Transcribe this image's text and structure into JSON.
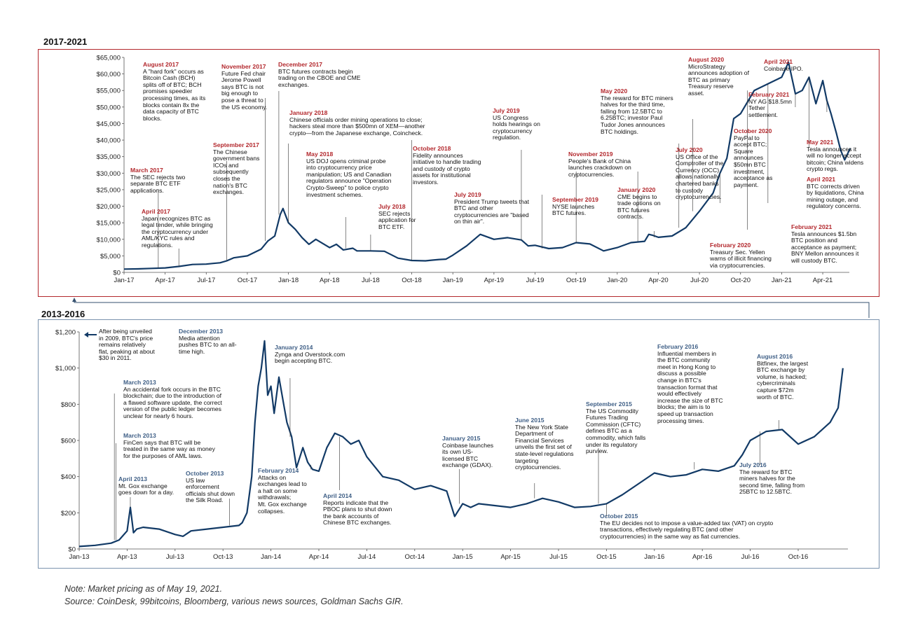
{
  "colors": {
    "line": "#123a66",
    "top_border": "#b3282d",
    "bottom_border": "#7b93ae",
    "red_heading": "#b3282d",
    "blue_heading": "#3f5f86"
  },
  "top_panel": {
    "period": "2017-2021",
    "annotations": [
      {
        "heading": "August 2017",
        "text": "A \"hard fork\" occurs as\nBitcoin Cash (BCH)\nsplits off of BTC; BCH\npromises speedier\nprocessing times, as its\nblocks contain 8x the\ndata capacity of BTC\nblocks."
      },
      {
        "heading": "November 2017",
        "text": "Future Fed chair\nJerome Powell\nsays BTC is not\nbig enough to\npose a threat to\nthe US economy."
      },
      {
        "heading": "December 2017",
        "text": "BTC futures contracts begin\ntrading on the CBOE and CME\nexchanges."
      },
      {
        "heading": "March 2017",
        "text": "The SEC rejects two\nseparate BTC ETF\napplications."
      },
      {
        "heading": "April 2017",
        "text": "Japan recognizes BTC as\nlegal tender, while bringing\nthe cryptocurrency under\nAML/KYC rules and\nregulations."
      },
      {
        "heading": "September 2017",
        "text": "The Chinese\ngovernment bans\nICOs and\nsubsequently\ncloses the\nnation's BTC\nexchanges."
      },
      {
        "heading": "January 2018",
        "text": "Chinese officials order mining operations to close;\nhackers steal more than $500mn of XEM—another\ncrypto—from the Japanese exchange, Coincheck."
      },
      {
        "heading": "May 2018",
        "text": "US DOJ opens criminal probe\ninto cryptocurrency price\nmanipulation; US and Canadian\nregulators announce \"Operation\nCrypto-Sweep\" to police crypto\ninvestment schemes."
      },
      {
        "heading": "October 2018",
        "text": "Fidelity announces\ninitiative to handle trading\nand custody of crypto\nassets for institutional\ninvestors."
      },
      {
        "heading": "July 2018",
        "text": "SEC rejects\napplication for\nBTC ETF."
      },
      {
        "heading": "July 2019",
        "text": "US Congress\nholds hearings on\ncryptocurrency\nregulation."
      },
      {
        "heading": "July 2019",
        "text": "President Trump tweets that\nBTC and other\ncryptocurrencies are \"based\non thin air\"."
      },
      {
        "heading": "May 2020",
        "text": "The reward for BTC miners\nhalves for the third time,\nfalling from 12.5BTC to\n6.25BTC; investor Paul\nTudor Jones announces\nBTC holdings."
      },
      {
        "heading": "November 2019",
        "text": "People's Bank of China\nlaunches crackdown on\ncryptocurrencies."
      },
      {
        "heading": "September 2019",
        "text": "NYSE launches\nBTC futures."
      },
      {
        "heading": "January 2020",
        "text": "CME begins to\ntrade options on\nBTC futures\ncontracts."
      },
      {
        "heading": "August 2020",
        "text": "MicroStrategy\nannounces adoption of\nBTC as primary\nTreasury reserve\nasset."
      },
      {
        "heading": "July 2020",
        "text": "US Office of the\nComptroller of the\nCurrency (OCC)\nallows nationally\nchartered banks\nto custody\ncryptocurrencies."
      },
      {
        "heading": "February 2020",
        "text": "Treasury Sec. Yellen\nwarns of illicit financing\nvia cryptocurrencies."
      },
      {
        "heading": "October 2020",
        "text": "PayPal to\naccept BTC;\nSquare\nannounces\n$50mn BTC\ninvestment,\nacceptance as\npayment."
      },
      {
        "heading": "April 2021",
        "text": "Coinbase IPO."
      },
      {
        "heading": "February 2021",
        "text": "NY AG $18.5mn\nTether\nsettlement."
      },
      {
        "heading": "May 2021",
        "text": "Tesla announces it\nwill no longer accept\nbitcoin; China widens\ncrypto regs."
      },
      {
        "heading": "April 2021",
        "text": "BTC corrects driven\nby liquidations, China\nmining outage, and\nregulatory concerns."
      },
      {
        "heading": "February 2021",
        "text": "Tesla announces $1.5bn\nBTC position and\nacceptance as payment;\nBNY Mellon announces it\nwill custody BTC."
      }
    ]
  },
  "bottom_panel": {
    "period": "2013-2016",
    "annotations": [
      {
        "heading": "",
        "text": "After being unveiled\nin 2009, BTC's price\nremains relatively\nflat, peaking at about\n$30 in 2011."
      },
      {
        "heading": "December 2013",
        "text": "Media attention\npushes BTC to an all-\ntime high."
      },
      {
        "heading": "January 2014",
        "text": "Zynga and Overstock.com\nbegin accepting BTC."
      },
      {
        "heading": "March 2013",
        "text": "An accidental fork occurs in the BTC\nblockchain; due to the introduction of\na flawed software update, the correct\nversion of the public ledger becomes\nunclear for nearly 6 hours."
      },
      {
        "heading": "March 2013",
        "text": "FinCen says that BTC will be\ntreated in the same way as money\nfor the purposes of AML laws."
      },
      {
        "heading": "April 2013",
        "text": "Mt. Gox exchange\ngoes down for a day."
      },
      {
        "heading": "October 2013",
        "text": "US law\nenforcement\nofficials shut down\nthe Silk Road."
      },
      {
        "heading": "February 2014",
        "text": "Attacks on\nexchanges lead to\na halt on some\nwithdrawals;\nMt. Gox exchange\ncollapses."
      },
      {
        "heading": "April 2014",
        "text": "Reports indicate that the\nPBOC plans to shut down\nthe bank accounts of\nChinese BTC exchanges."
      },
      {
        "heading": "January 2015",
        "text": "Coinbase launches\nits own US-\nlicensed BTC\nexchange (GDAX)."
      },
      {
        "heading": "June 2015",
        "text": "The New York State\nDepartment of\nFinancial Services\nunveils the first set of\nstate-level regulations\ntargeting\ncryptocurrencies."
      },
      {
        "heading": "September 2015",
        "text": "The US Commodity\nFutures Trading\nCommission (CFTC)\ndefines BTC as a\ncommodity, which falls\nunder its regulatory\npurview."
      },
      {
        "heading": "February 2016",
        "text": "Influential members in\nthe BTC community\nmeet in Hong Kong to\ndiscuss a possible\nchange in BTC's\ntransaction format that\nwould effectively\nincrease the size of BTC\nblocks; the aim is to\nspeed up transaction\nprocessing times."
      },
      {
        "heading": "August 2016",
        "text": "Bitfinex, the largest\nBTC exchange by\nvolume, is hacked;\ncybercriminals\ncapture $72m\nworth of BTC."
      },
      {
        "heading": "July 2016",
        "text": "The reward for BTC\nminers halves for the\nsecond time, falling from\n25BTC to 12.5BTC."
      },
      {
        "heading": "October 2015",
        "text": "The EU decides not to impose a value-added tax (VAT) on crypto\ntransactions, effectively regulating BTC (and other\ncryptocurrencies) in the same way as fiat currencies."
      }
    ]
  },
  "footer": {
    "note": "Note: Market pricing as of May 19, 2021.",
    "source": "Source: CoinDesk, 99bitcoins, Bloomberg, various news sources, Goldman Sachs GIR."
  },
  "chart_data": [
    {
      "type": "line",
      "title": "2017-2021",
      "ylabel": "",
      "xlabel": "",
      "xlim": [
        "Jan-17",
        "May-21"
      ],
      "ylim": [
        0,
        65000
      ],
      "yticks": [
        "$0",
        "$5,000",
        "$10,000",
        "$15,000",
        "$20,000",
        "$25,000",
        "$30,000",
        "$35,000",
        "$40,000",
        "$45,000",
        "$50,000",
        "$55,000",
        "$60,000",
        "$65,000"
      ],
      "xticks": [
        "Jan-17",
        "Apr-17",
        "Jul-17",
        "Oct-17",
        "Jan-18",
        "Apr-18",
        "Jul-18",
        "Oct-18",
        "Jan-19",
        "Apr-19",
        "Jul-19",
        "Oct-19",
        "Jan-20",
        "Apr-20",
        "Jul-20",
        "Oct-20",
        "Jan-21",
        "Apr-21"
      ],
      "series": [
        {
          "name": "",
          "x": [
            0,
            1,
            2,
            3,
            4,
            5,
            6,
            6.5,
            7,
            7.5,
            8,
            9,
            10,
            10.5,
            11,
            11.4,
            11.6,
            12,
            12.5,
            13,
            13.5,
            14,
            15,
            15.5,
            16,
            16.7,
            17,
            18,
            19,
            20,
            21,
            22,
            22.5,
            23,
            23.5,
            24,
            25,
            26,
            27,
            28,
            29,
            29.5,
            30,
            31,
            32,
            33,
            34,
            35,
            36,
            37,
            38,
            38.3,
            38.6,
            39,
            40,
            41,
            42,
            43,
            43.5,
            44,
            44.5,
            45,
            46,
            47,
            48,
            48.5,
            49,
            49.5,
            50,
            50.5,
            51,
            51.3,
            51.6,
            52,
            52.3,
            52.6,
            53
          ],
          "y": [
            1000,
            1050,
            1200,
            1350,
            1800,
            2400,
            2500,
            2700,
            2900,
            3500,
            4400,
            5000,
            7000,
            9500,
            11000,
            17500,
            19300,
            15000,
            13000,
            10500,
            8500,
            10000,
            7500,
            8500,
            6800,
            7300,
            6500,
            6500,
            6400,
            4300,
            3600,
            3500,
            3700,
            3900,
            4000,
            5200,
            8000,
            11500,
            10000,
            10500,
            9800,
            8000,
            8200,
            7200,
            7500,
            9000,
            8600,
            6500,
            7500,
            9000,
            9400,
            11500,
            11200,
            10600,
            11000,
            13500,
            18500,
            24000,
            30000,
            34500,
            46500,
            48000,
            55000,
            57000,
            59000,
            63500,
            54000,
            55000,
            59000,
            51000,
            58000,
            52000,
            48000,
            42000,
            37000,
            34000,
            37500
          ],
          "x_unit": "months since Jan-17"
        }
      ]
    },
    {
      "type": "line",
      "title": "2013-2016",
      "ylabel": "",
      "xlabel": "",
      "xlim": [
        "Jan-13",
        "Dec-16"
      ],
      "ylim": [
        0,
        1200
      ],
      "yticks": [
        "$0",
        "$200",
        "$400",
        "$600",
        "$800",
        "$1,000",
        "$1,200"
      ],
      "xticks": [
        "Jan-13",
        "Apr-13",
        "Jul-13",
        "Oct-13",
        "Jan-14",
        "Apr-14",
        "Jul-14",
        "Oct-14",
        "Jan-15",
        "Apr-15",
        "Jul-15",
        "Oct-15",
        "Jan-16",
        "Apr-16",
        "Jul-16",
        "Oct-16"
      ],
      "series": [
        {
          "name": "",
          "x": [
            0,
            1,
            2,
            2.5,
            3,
            3.2,
            3.4,
            3.6,
            4,
            5,
            6,
            6.5,
            7,
            8,
            9,
            10,
            10.2,
            10.5,
            10.8,
            11,
            11.2,
            11.4,
            11.6,
            11.8,
            12,
            12.2,
            12.5,
            12.8,
            13,
            13.3,
            13.6,
            14,
            14.3,
            14.6,
            15,
            15.5,
            16,
            16.5,
            17,
            17.5,
            18,
            19,
            20,
            21,
            22,
            23,
            23.5,
            24,
            24.5,
            25,
            26,
            27,
            28,
            29,
            30,
            31,
            32,
            33,
            34,
            35,
            36,
            37,
            38,
            39,
            40,
            41,
            41.5,
            42,
            43,
            44,
            45,
            46,
            47,
            47.5,
            47.8
          ],
          "y": [
            14,
            20,
            32,
            50,
            100,
            230,
            90,
            110,
            120,
            110,
            80,
            70,
            100,
            110,
            120,
            130,
            145,
            200,
            400,
            700,
            900,
            1000,
            1150,
            850,
            900,
            750,
            950,
            800,
            700,
            620,
            450,
            560,
            480,
            440,
            430,
            560,
            640,
            620,
            580,
            600,
            510,
            400,
            380,
            330,
            350,
            320,
            180,
            250,
            230,
            250,
            240,
            230,
            250,
            280,
            260,
            230,
            235,
            250,
            300,
            360,
            420,
            400,
            410,
            440,
            430,
            460,
            520,
            600,
            650,
            660,
            580,
            620,
            700,
            780,
            1000
          ],
          "x_unit": "months since Jan-13"
        }
      ]
    }
  ]
}
